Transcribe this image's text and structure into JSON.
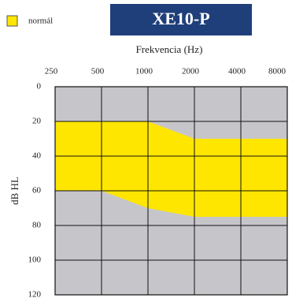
{
  "chart_data": {
    "type": "area_range",
    "title": "XE10-P",
    "xlabel": "Frekvencia (Hz)",
    "ylabel": "dB HL",
    "x": [
      250,
      500,
      1000,
      2000,
      4000,
      8000
    ],
    "xlim": [
      250,
      8000
    ],
    "xticks": [
      250,
      500,
      1000,
      2000,
      4000,
      8000
    ],
    "xlog": true,
    "ylim": [
      0,
      120
    ],
    "yticks": [
      0,
      20,
      40,
      60,
      80,
      100,
      120
    ],
    "yinverted": true,
    "grid": true,
    "legend": "top-left",
    "series": [
      {
        "name": "normál",
        "color": "#ffe600",
        "low": [
          20,
          20,
          20,
          30,
          30,
          30
        ],
        "high": [
          60,
          60,
          70,
          75,
          75,
          75
        ]
      }
    ]
  }
}
